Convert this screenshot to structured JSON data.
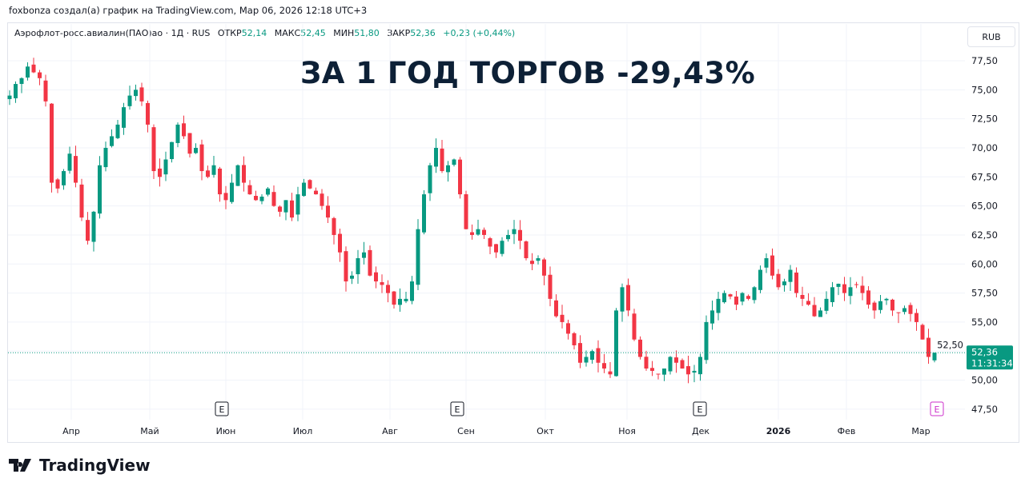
{
  "credit": "foxbonza создал(а) график на TradingView.com, Мар 06, 2026 12:18 UTC+3",
  "legend": {
    "symbol": "Аэрофлот-росс.авиалин(ПАО)ао · 1Д · RUS",
    "open_label": "ОТКР",
    "open": "52,14",
    "high_label": "МАКС",
    "high": "52,45",
    "low_label": "МИН",
    "low": "51,80",
    "close_label": "ЗАКР",
    "close": "52,36",
    "change": "+0,23 (+0,44%)"
  },
  "currency_button": "RUB",
  "headline": "ЗА 1 ГОД ТОРГОВ -29,43%",
  "price_badge": {
    "price": "52,36",
    "countdown": "11:31:34"
  },
  "earnings_marker": "E",
  "logo_text": "TradingView",
  "colors": {
    "up": "#089981",
    "down": "#f23645",
    "headline": "#0d2036",
    "earnings_upcoming": "#cc2fcb"
  },
  "chart_data": {
    "type": "candlestick",
    "title": "ЗА 1 ГОД ТОРГОВ -29,43%",
    "y_ticks": [
      "77,50",
      "75,00",
      "72,50",
      "70,00",
      "67,50",
      "65,00",
      "62,50",
      "60,00",
      "57,50",
      "55,00",
      "52,50",
      "50,00",
      "47,50"
    ],
    "y_tick_values": [
      77.5,
      75,
      72.5,
      70,
      67.5,
      65,
      62.5,
      60,
      57.5,
      55,
      52.5,
      50,
      47.5
    ],
    "ylim": [
      46.5,
      79
    ],
    "x_ticks": [
      "Апр",
      "Май",
      "Июн",
      "Июл",
      "Авг",
      "Сен",
      "Окт",
      "Ноя",
      "Дек",
      "2026",
      "Фев",
      "Мар"
    ],
    "last_price": 52.36,
    "earnings_events": [
      "Июн",
      "Сен",
      "Дек",
      "Мар"
    ],
    "closes_approx": [
      74.5,
      75.5,
      76,
      77,
      76.5,
      76,
      74,
      67,
      66.5,
      68,
      69.5,
      67,
      64,
      62,
      64.5,
      68.5,
      70,
      71,
      72,
      73.5,
      74.5,
      75,
      74,
      72,
      68,
      67.5,
      69,
      70.5,
      72,
      71,
      69.5,
      70,
      68,
      67.5,
      68.5,
      66,
      65.5,
      67,
      68.5,
      67,
      66,
      65.5,
      65.8,
      66.5,
      65,
      64.5,
      65.5,
      64,
      66,
      67,
      66.5,
      66,
      65,
      64,
      62.5,
      61,
      58.5,
      59,
      60.5,
      61,
      59,
      58.5,
      58.2,
      57.5,
      56.5,
      57,
      57,
      58.5,
      63,
      66,
      68.5,
      70,
      68,
      68.5,
      69,
      66,
      63,
      62.5,
      63,
      62.5,
      61.5,
      61,
      62,
      62.5,
      63,
      62,
      60.5,
      60,
      60.5,
      59,
      57,
      55.5,
      55,
      54,
      53,
      51.5,
      52,
      52.5,
      51.5,
      51,
      50.5,
      56,
      58,
      56,
      53.5,
      52,
      51,
      50.8,
      50.5,
      51,
      52,
      51.5,
      51,
      50.5,
      50.8,
      52,
      55,
      56,
      57,
      57.5,
      57.2,
      56.5,
      57.5,
      57,
      58,
      59.5,
      60.5,
      59,
      58,
      58.5,
      59.5,
      57.5,
      57,
      56.5,
      55.5,
      56,
      57,
      58,
      58.3,
      57.5,
      58,
      58.2,
      57.5,
      56.5,
      56,
      56.8,
      57,
      56,
      55.8,
      56.2,
      55.7,
      55,
      53.5,
      52,
      52.36
    ]
  }
}
